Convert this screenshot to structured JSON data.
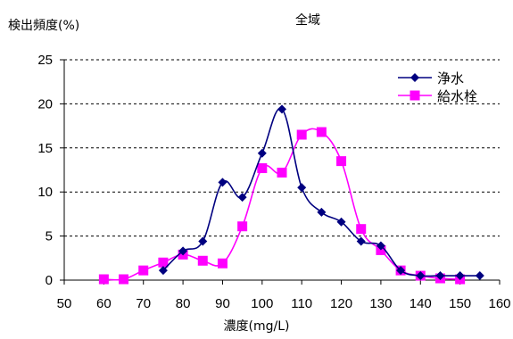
{
  "chart_data": {
    "type": "line",
    "title": "全域",
    "xlabel": "濃度(mg/L)",
    "ylabel": "検出頻度(%)",
    "xlim": [
      50,
      160
    ],
    "ylim": [
      0,
      25
    ],
    "x_ticks": [
      "50",
      "60",
      "70",
      "80",
      "90",
      "100",
      "110",
      "120",
      "130",
      "140",
      "150",
      "160"
    ],
    "y_ticks": [
      "0",
      "5",
      "10",
      "15",
      "20",
      "25"
    ],
    "grid": "horizontal dashed",
    "legend_position": "top-right",
    "series": [
      {
        "name": "浄水",
        "color": "#000080",
        "marker": "diamond",
        "x": [
          75,
          80,
          85,
          90,
          95,
          100,
          105,
          110,
          115,
          120,
          125,
          130,
          135,
          140,
          145,
          150,
          155
        ],
        "y": [
          1.1,
          3.3,
          4.4,
          11.1,
          9.4,
          14.4,
          19.4,
          10.5,
          7.7,
          6.6,
          4.4,
          3.9,
          1.1,
          0.5,
          0.5,
          0.5,
          0.5
        ]
      },
      {
        "name": "給水栓",
        "color": "#ff00ff",
        "marker": "square",
        "x": [
          60,
          65,
          70,
          75,
          80,
          85,
          90,
          95,
          100,
          105,
          110,
          115,
          120,
          125,
          130,
          135,
          140,
          145,
          150
        ],
        "y": [
          0.1,
          0.1,
          1.1,
          2.0,
          2.9,
          2.2,
          1.9,
          6.1,
          12.7,
          12.2,
          16.5,
          16.8,
          13.5,
          5.8,
          3.4,
          1.1,
          0.5,
          0.2,
          0.1
        ]
      }
    ]
  }
}
